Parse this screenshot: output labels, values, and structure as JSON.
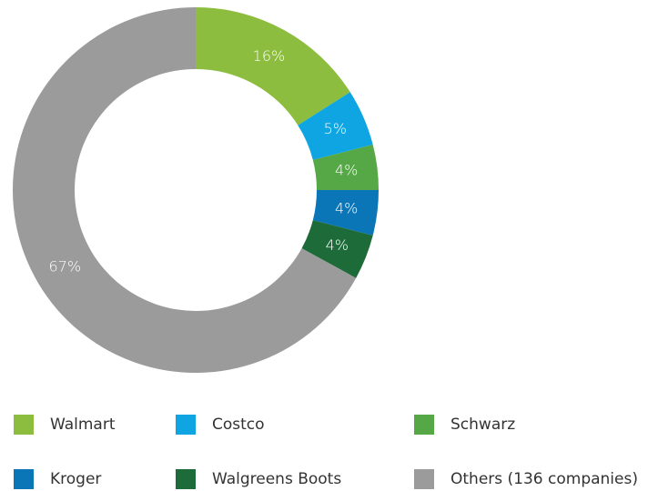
{
  "chart_data": {
    "type": "donut",
    "categories": [
      "Walmart",
      "Costco",
      "Schwarz",
      "Kroger",
      "Walgreens Boots",
      "Others (136 companies)"
    ],
    "values": [
      16,
      5,
      4,
      4,
      4,
      67
    ],
    "value_labels": [
      "16%",
      "5%",
      "4%",
      "4%",
      "4%",
      "67%"
    ],
    "colors": [
      "#8cbd3f",
      "#0ea5e2",
      "#55a845",
      "#0a76b8",
      "#1e6b3a",
      "#9b9b9b"
    ],
    "legend": "bottom"
  }
}
